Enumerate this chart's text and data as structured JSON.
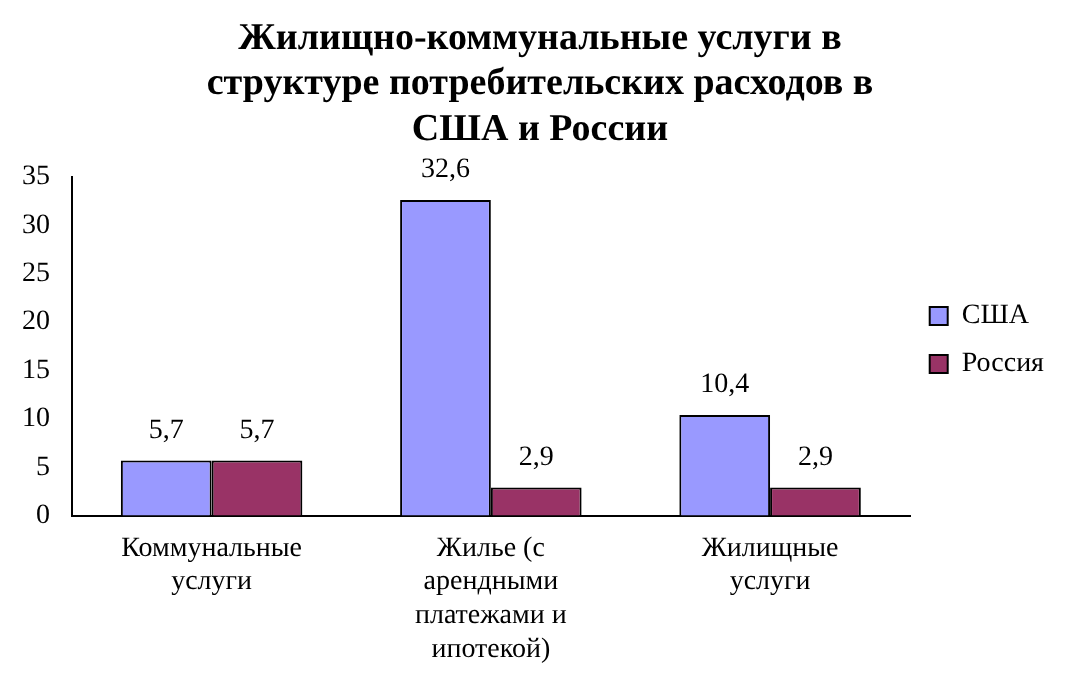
{
  "chart_data": {
    "type": "bar",
    "title": "Жилищно-коммунальные услуги в структуре потребительских расходов в США и России",
    "categories": [
      "Коммунальные услуги",
      "Жилье (с арендными платежами и ипотекой)",
      "Жилищные услуги"
    ],
    "series": [
      {
        "name": "США",
        "color": "#9999ff",
        "values": [
          5.7,
          32.6,
          10.4
        ],
        "value_labels": [
          "5,7",
          "32,6",
          "10,4"
        ]
      },
      {
        "name": "Россия",
        "color": "#993366",
        "values": [
          5.7,
          2.9,
          2.9
        ],
        "value_labels": [
          "5,7",
          "2,9",
          "2,9"
        ]
      }
    ],
    "ylim": [
      0,
      35
    ],
    "yticks": [
      0,
      5,
      10,
      15,
      20,
      25,
      30,
      35
    ],
    "grid": false,
    "legend": "right"
  }
}
